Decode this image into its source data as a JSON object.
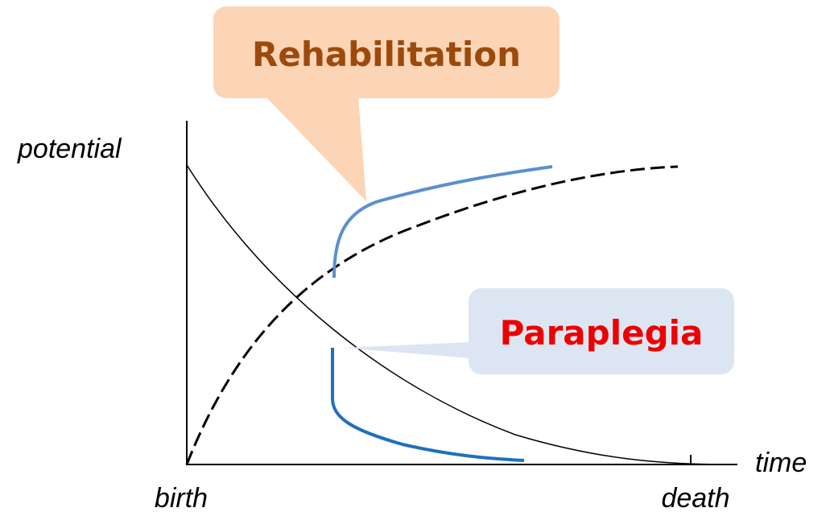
{
  "callouts": {
    "rehabilitation": "Rehabilitation",
    "paraplegia": "Paraplegia"
  },
  "axes": {
    "y_label": "potential",
    "x_label": "time",
    "start": "birth",
    "end": "death"
  }
}
